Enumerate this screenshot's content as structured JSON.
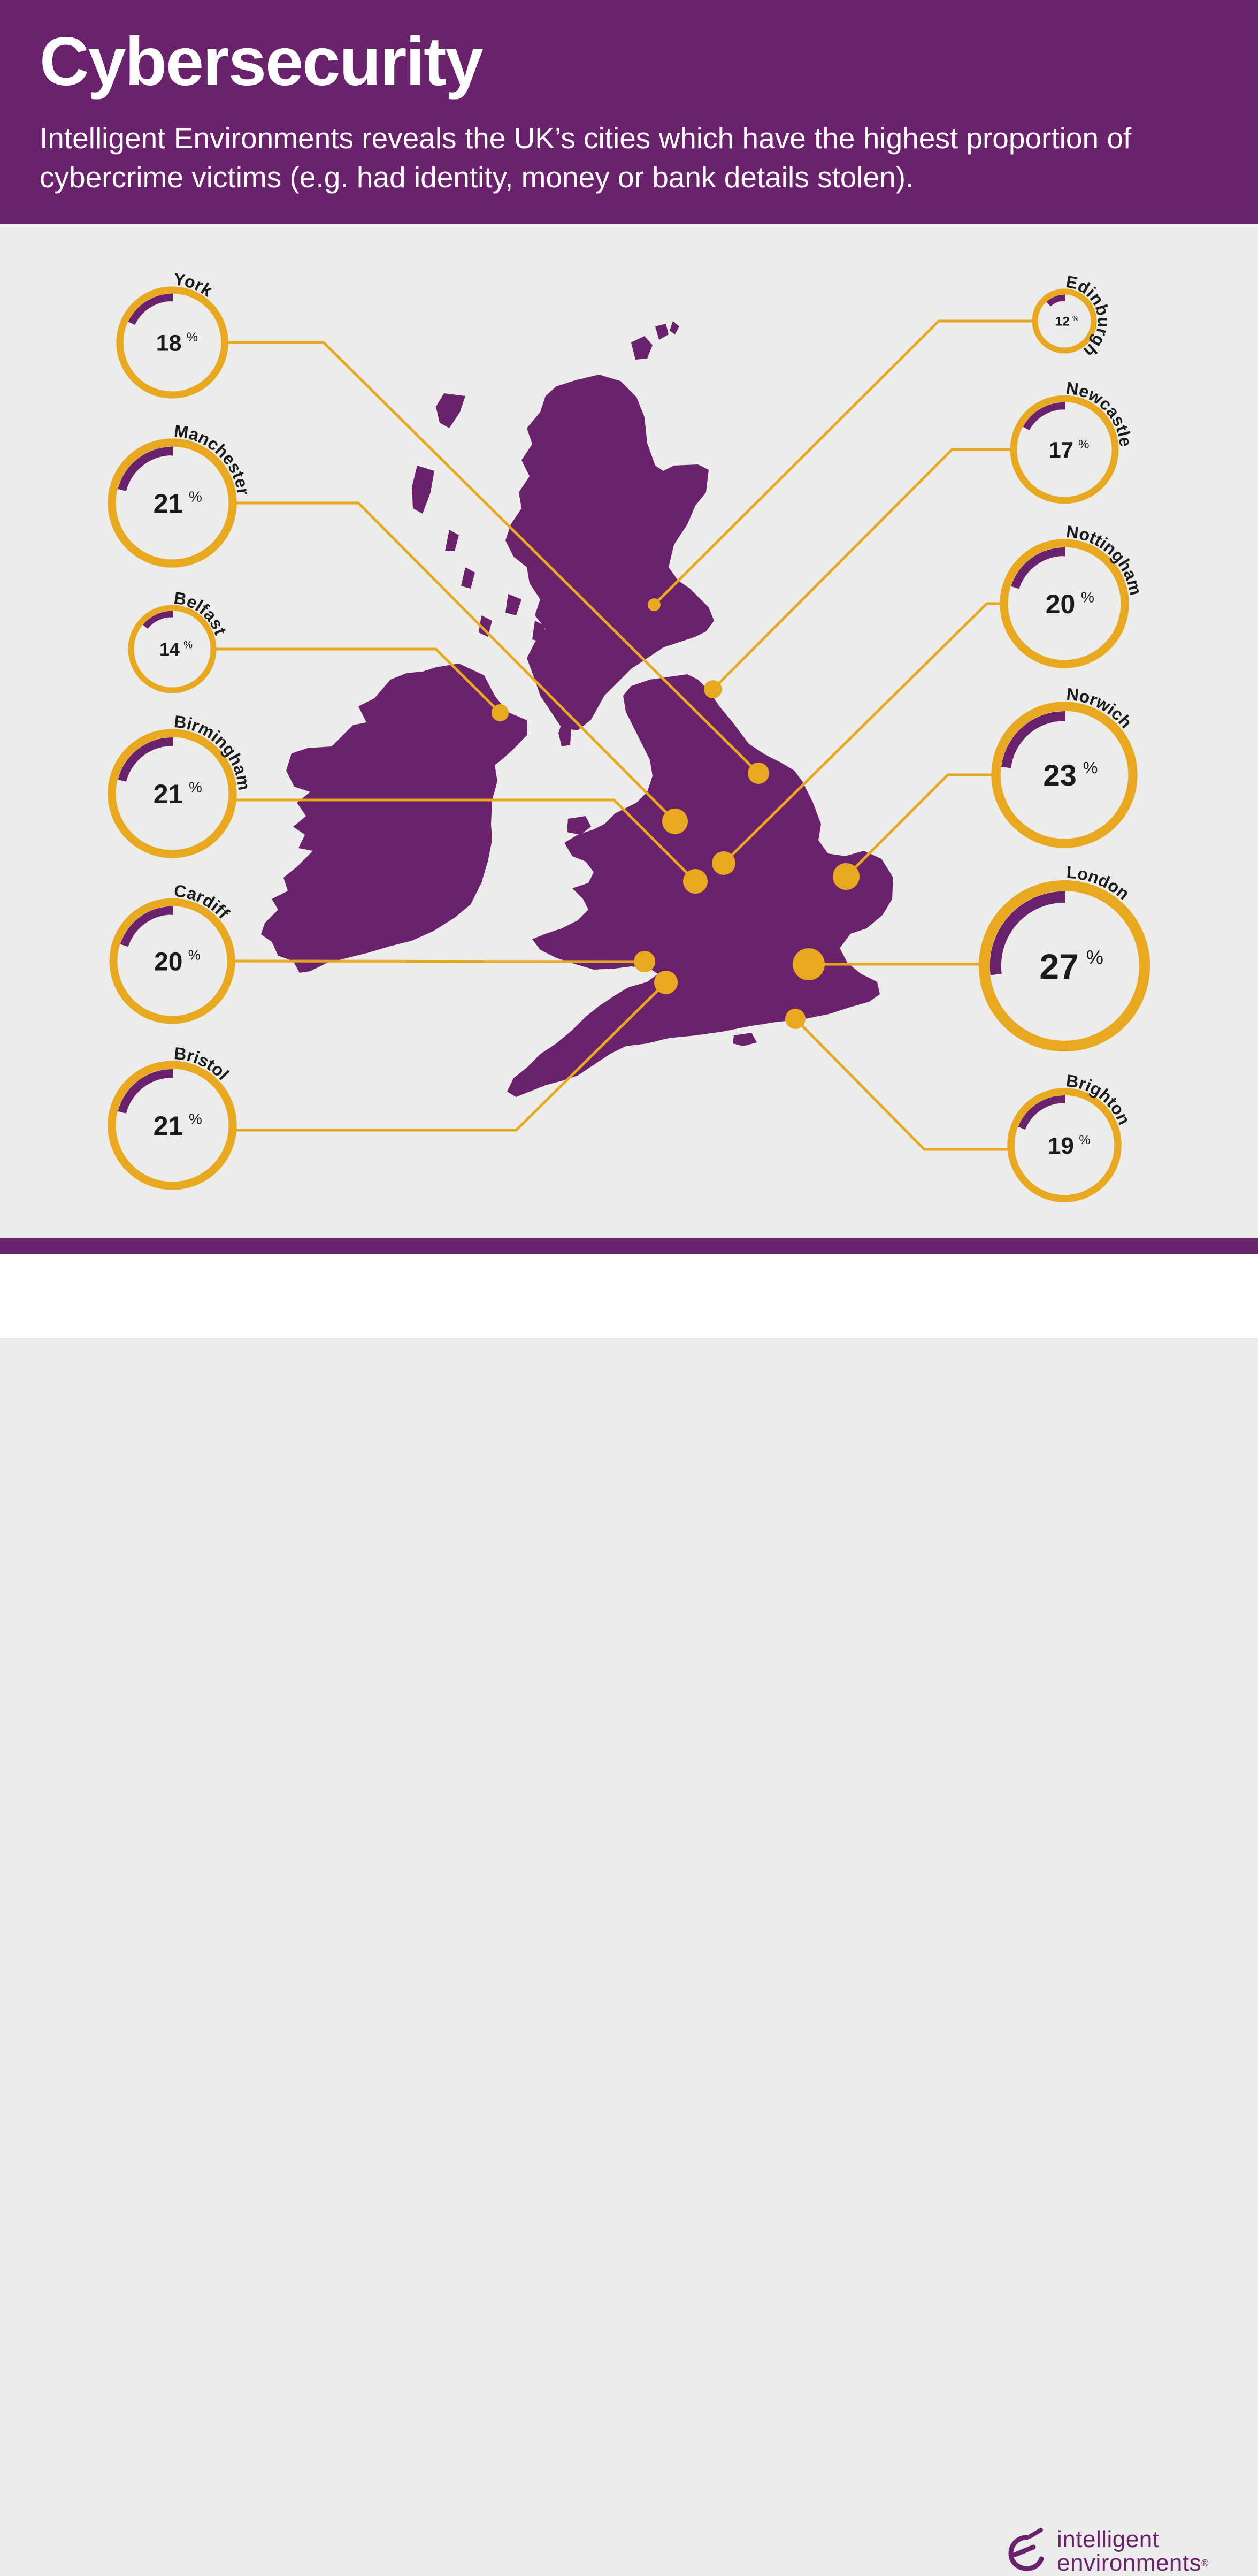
{
  "header": {
    "title": "Cybersecurity",
    "subtitle": "Intelligent Environments reveals the UK’s cities which have the highest proportion of cybercrime victims (e.g. had identity, money or bank details stolen)."
  },
  "colors": {
    "brand_purple": "#6b226d",
    "ring_gold": "#e8a81f",
    "background": "#ececea",
    "text_dark": "#1b1b1b"
  },
  "chart_data": {
    "type": "map-proportion-rings",
    "unit": "%",
    "cities": [
      {
        "name": "York",
        "value": 18
      },
      {
        "name": "Manchester",
        "value": 21
      },
      {
        "name": "Belfast",
        "value": 14
      },
      {
        "name": "Birmingham",
        "value": 21
      },
      {
        "name": "Cardiff",
        "value": 20
      },
      {
        "name": "Bristol",
        "value": 21
      },
      {
        "name": "Edinburgh",
        "value": 12
      },
      {
        "name": "Newcastle",
        "value": 17
      },
      {
        "name": "Nottingham",
        "value": 20
      },
      {
        "name": "Norwich",
        "value": 23
      },
      {
        "name": "London",
        "value": 27
      },
      {
        "name": "Brighton",
        "value": 19
      }
    ]
  },
  "logo": {
    "line1": "intelligent",
    "line2": "environments",
    "registered_mark": "®",
    "icon": "e-swoosh-icon"
  }
}
